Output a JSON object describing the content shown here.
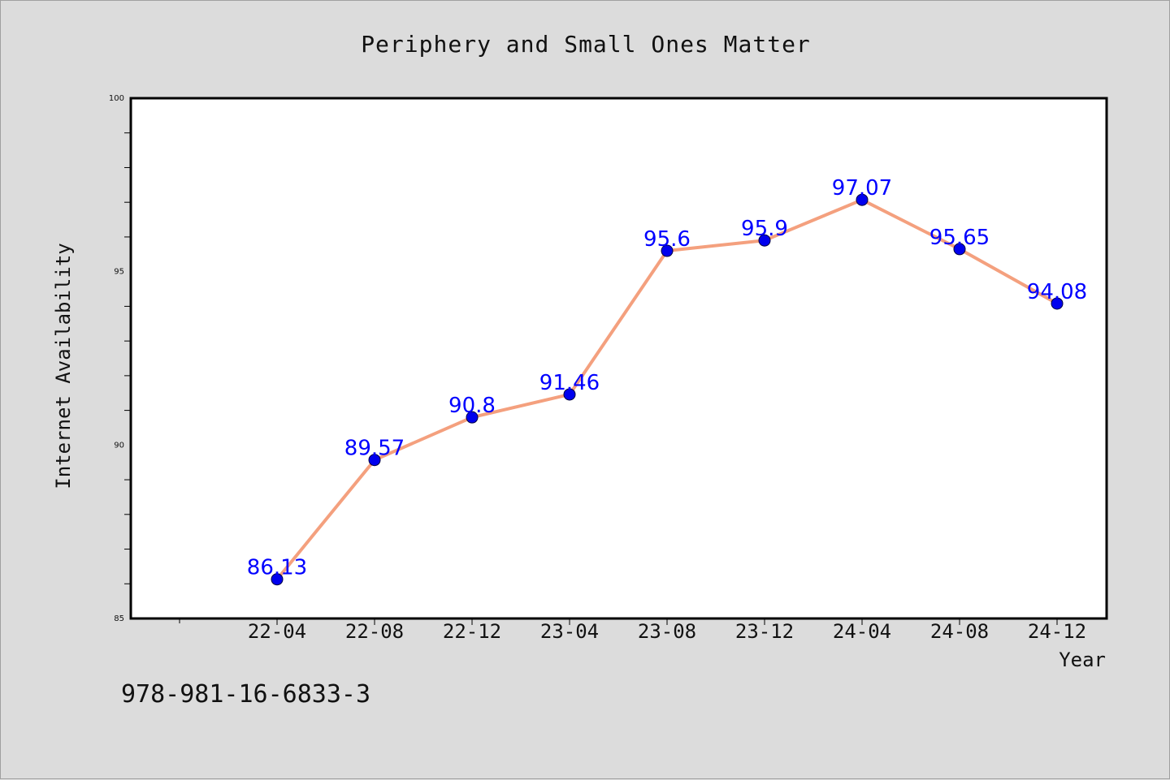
{
  "chart_data": {
    "type": "line",
    "title": "Periphery and Small Ones Matter",
    "xlabel": "Year",
    "ylabel": "Internet Availability",
    "categories": [
      "22-04",
      "22-08",
      "22-12",
      "23-04",
      "23-08",
      "23-12",
      "24-04",
      "24-08",
      "24-12"
    ],
    "series": [
      {
        "values": [
          86.13,
          89.57,
          90.8,
          91.46,
          95.6,
          95.9,
          97.07,
          95.65,
          94.08
        ],
        "line_color": "#f4a07e",
        "marker_color": "#0000ee"
      }
    ],
    "data_labels": [
      "86.13",
      "89.57",
      "90.8",
      "91.46",
      "95.6",
      "95.9",
      "97.07",
      "95.65",
      "94.08"
    ],
    "ylim": [
      85,
      100
    ],
    "yticks": [
      "85",
      "90",
      "95",
      "100"
    ],
    "grid": false,
    "legend": "none",
    "footer_text": "978-981-16-6833-3",
    "data_label_color": "#0000ff"
  }
}
